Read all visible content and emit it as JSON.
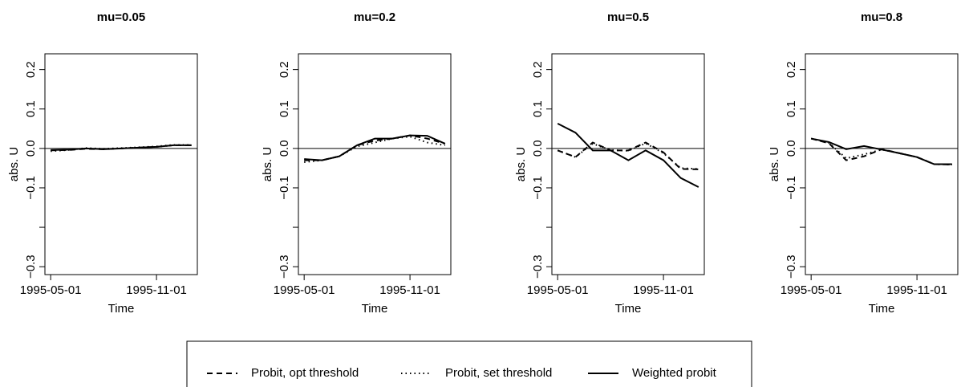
{
  "chart_data": [
    {
      "type": "line",
      "title": "mu=0.05",
      "xlabel": "Time",
      "ylabel": "abs. U",
      "x": [
        "1995-05-01",
        "1995-06-01",
        "1995-07-01",
        "1995-08-01",
        "1995-09-01",
        "1995-10-01",
        "1995-11-01",
        "1995-12-01",
        "1996-01-01"
      ],
      "xlim": [
        "1995-04-21",
        "1996-01-11"
      ],
      "xticks": [
        "1995-05-01",
        "1995-11-01"
      ],
      "ylim": [
        -0.32,
        0.24
      ],
      "yticks": [
        {
          "value": -0.3,
          "label": "−0.3"
        },
        {
          "value": -0.2,
          "label": null
        },
        {
          "value": -0.1,
          "label": "−0.1"
        },
        {
          "value": 0,
          "label": "0.0"
        },
        0.1,
        0.2
      ],
      "hline": 0,
      "series": [
        {
          "name": "Probit, opt threshold",
          "color": "#000000",
          "dash": "dashed",
          "values": [
            -0.005,
            -0.004,
            -0.001,
            -0.002,
            0.0,
            0.002,
            0.004,
            0.008,
            0.008
          ]
        },
        {
          "name": "Probit, set threshold",
          "color": "#000000",
          "dash": "dotted",
          "values": [
            -0.007,
            -0.004,
            0.001,
            -0.001,
            0.001,
            0.003,
            0.005,
            0.009,
            0.009
          ]
        },
        {
          "name": "Weighted probit",
          "color": "#000000",
          "dash": "solid",
          "values": [
            -0.004,
            -0.003,
            0.0,
            -0.002,
            0.0,
            0.002,
            0.004,
            0.008,
            0.008
          ]
        }
      ]
    },
    {
      "type": "line",
      "title": "mu=0.2",
      "xlabel": "Time",
      "ylabel": "abs. U",
      "x": [
        "1995-05-01",
        "1995-06-01",
        "1995-07-01",
        "1995-08-01",
        "1995-09-01",
        "1995-10-01",
        "1995-11-01",
        "1995-12-01",
        "1996-01-01"
      ],
      "xlim": [
        "1995-04-21",
        "1996-01-11"
      ],
      "xticks": [
        "1995-05-01",
        "1995-11-01"
      ],
      "ylim": [
        -0.32,
        0.24
      ],
      "yticks": [
        {
          "value": -0.3,
          "label": "−0.3"
        },
        {
          "value": -0.2,
          "label": null
        },
        {
          "value": -0.1,
          "label": "−0.1"
        },
        {
          "value": 0,
          "label": "0.0"
        },
        0.1,
        0.2
      ],
      "hline": 0,
      "series": [
        {
          "name": "Probit, opt threshold",
          "color": "#000000",
          "dash": "dashed",
          "values": [
            -0.03,
            -0.03,
            -0.02,
            0.008,
            0.02,
            0.025,
            0.033,
            0.025,
            0.012
          ]
        },
        {
          "name": "Probit, set threshold",
          "color": "#000000",
          "dash": "dotted",
          "values": [
            -0.035,
            -0.03,
            -0.02,
            0.005,
            0.015,
            0.025,
            0.03,
            0.015,
            0.008
          ]
        },
        {
          "name": "Weighted probit",
          "color": "#000000",
          "dash": "solid",
          "values": [
            -0.027,
            -0.03,
            -0.02,
            0.008,
            0.025,
            0.025,
            0.033,
            0.032,
            0.012
          ]
        }
      ]
    },
    {
      "type": "line",
      "title": "mu=0.5",
      "xlabel": "Time",
      "ylabel": "abs. U",
      "x": [
        "1995-05-01",
        "1995-06-01",
        "1995-07-01",
        "1995-08-01",
        "1995-09-01",
        "1995-10-01",
        "1995-11-01",
        "1995-12-01",
        "1996-01-01"
      ],
      "xlim": [
        "1995-04-21",
        "1996-01-11"
      ],
      "xticks": [
        "1995-05-01",
        "1995-11-01"
      ],
      "ylim": [
        -0.32,
        0.24
      ],
      "yticks": [
        {
          "value": -0.3,
          "label": "−0.3"
        },
        {
          "value": -0.2,
          "label": null
        },
        {
          "value": -0.1,
          "label": "−0.1"
        },
        {
          "value": 0,
          "label": "0.0"
        },
        0.1,
        0.2
      ],
      "hline": 0,
      "series": [
        {
          "name": "Probit, opt threshold",
          "color": "#000000",
          "dash": "dashed",
          "values": [
            -0.005,
            -0.022,
            0.015,
            -0.005,
            -0.005,
            0.015,
            -0.01,
            -0.052,
            -0.053
          ]
        },
        {
          "name": "Probit, set threshold",
          "color": "#000000",
          "dash": "dotted",
          "values": [
            -0.005,
            -0.022,
            0.012,
            -0.004,
            -0.006,
            0.013,
            -0.012,
            -0.05,
            -0.052
          ]
        },
        {
          "name": "Weighted probit",
          "color": "#000000",
          "dash": "solid",
          "values": [
            0.063,
            0.04,
            -0.005,
            -0.005,
            -0.03,
            -0.005,
            -0.03,
            -0.075,
            -0.098
          ]
        }
      ]
    },
    {
      "type": "line",
      "title": "mu=0.8",
      "xlabel": "Time",
      "ylabel": "abs. U",
      "x": [
        "1995-05-01",
        "1995-06-01",
        "1995-07-01",
        "1995-08-01",
        "1995-09-01",
        "1995-10-01",
        "1995-11-01",
        "1995-12-01",
        "1996-01-01"
      ],
      "xlim": [
        "1995-04-21",
        "1996-01-11"
      ],
      "xticks": [
        "1995-05-01",
        "1995-11-01"
      ],
      "ylim": [
        -0.32,
        0.24
      ],
      "yticks": [
        {
          "value": -0.3,
          "label": "−0.3"
        },
        {
          "value": -0.2,
          "label": null
        },
        {
          "value": -0.1,
          "label": "−0.1"
        },
        {
          "value": 0,
          "label": "0.0"
        },
        0.1,
        0.2
      ],
      "hline": 0,
      "series": [
        {
          "name": "Probit, opt threshold",
          "color": "#000000",
          "dash": "dashed",
          "values": [
            0.025,
            0.013,
            -0.03,
            -0.02,
            -0.002,
            -0.012,
            -0.022,
            -0.04,
            -0.041
          ]
        },
        {
          "name": "Probit, set threshold",
          "color": "#000000",
          "dash": "dotted",
          "values": [
            0.025,
            0.014,
            -0.025,
            -0.015,
            -0.003,
            -0.012,
            -0.022,
            -0.04,
            -0.041
          ]
        },
        {
          "name": "Weighted probit",
          "color": "#000000",
          "dash": "solid",
          "values": [
            0.025,
            0.016,
            -0.002,
            0.006,
            -0.003,
            -0.012,
            -0.022,
            -0.04,
            -0.04
          ]
        }
      ]
    }
  ]
}
